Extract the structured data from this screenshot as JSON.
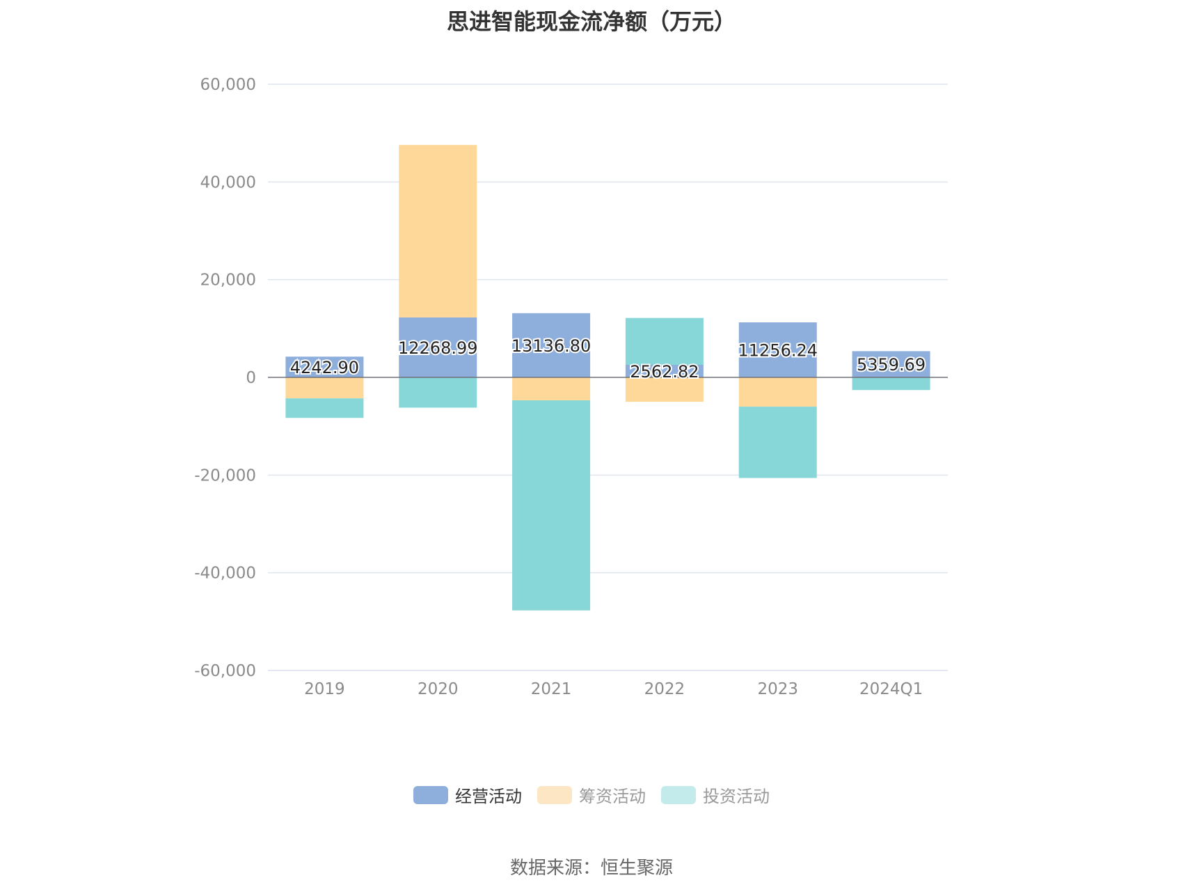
{
  "chart_data": {
    "type": "bar",
    "stacked": true,
    "title": "思进智能现金流净额（万元）",
    "categories": [
      "2019",
      "2020",
      "2021",
      "2022",
      "2023",
      "2024Q1"
    ],
    "series": [
      {
        "name": "经营活动",
        "color": "#8eaedc",
        "values": [
          4242.9,
          12268.99,
          13136.8,
          2562.82,
          11256.24,
          5359.69
        ]
      },
      {
        "name": "筹资活动",
        "color": "#fed898",
        "values": [
          -4300,
          35300,
          -4700,
          -5000,
          -6000,
          0
        ]
      },
      {
        "name": "投资活动",
        "color": "#87d6d8",
        "values": [
          -4000,
          -6200,
          -43000,
          9600,
          -14600,
          -2600
        ]
      }
    ],
    "data_labels": [
      "4242.90",
      "12268.99",
      "13136.80",
      "2562.82",
      "11256.24",
      "5359.69"
    ],
    "ylim": [
      -60000,
      60000
    ],
    "yticks": [
      "60,000",
      "40,000",
      "20,000",
      "0",
      "-20,000",
      "-40,000",
      "-60,000"
    ],
    "ytick_values": [
      60000,
      40000,
      20000,
      0,
      -20000,
      -40000,
      -60000
    ],
    "grid": true,
    "legend_position": "bottom"
  },
  "legend": [
    {
      "label": "经营活动",
      "color": "#8eaedc"
    },
    {
      "label": "筹资活动",
      "color": "#fde6c4"
    },
    {
      "label": "投资活动",
      "color": "#c3ebec"
    }
  ],
  "source": "数据来源：恒生聚源"
}
